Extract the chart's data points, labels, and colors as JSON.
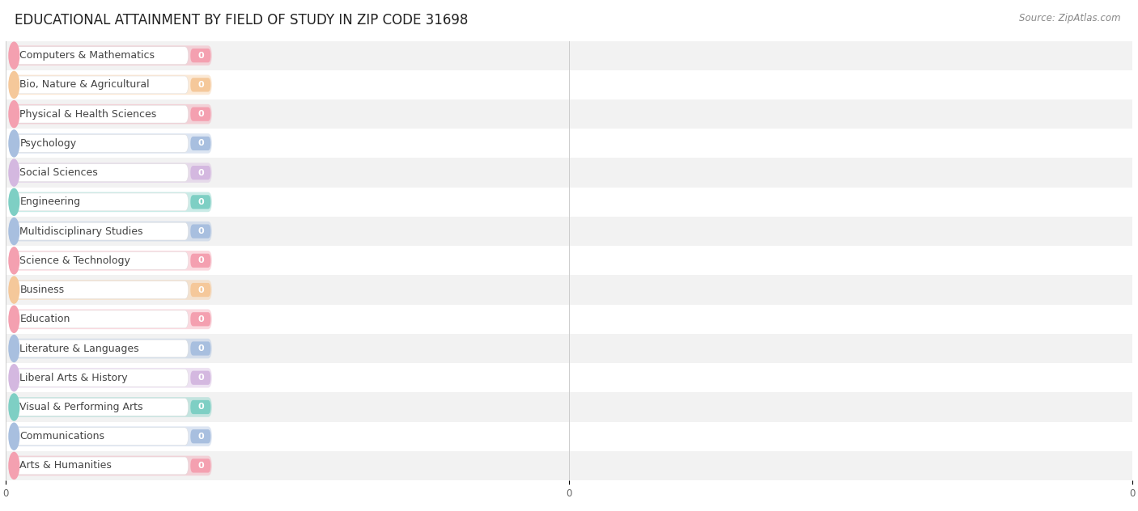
{
  "title": "EDUCATIONAL ATTAINMENT BY FIELD OF STUDY IN ZIP CODE 31698",
  "source": "Source: ZipAtlas.com",
  "categories": [
    "Computers & Mathematics",
    "Bio, Nature & Agricultural",
    "Physical & Health Sciences",
    "Psychology",
    "Social Sciences",
    "Engineering",
    "Multidisciplinary Studies",
    "Science & Technology",
    "Business",
    "Education",
    "Literature & Languages",
    "Liberal Arts & History",
    "Visual & Performing Arts",
    "Communications",
    "Arts & Humanities"
  ],
  "values": [
    0,
    0,
    0,
    0,
    0,
    0,
    0,
    0,
    0,
    0,
    0,
    0,
    0,
    0,
    0
  ],
  "bar_colors": [
    "#F4A0B0",
    "#F5C89A",
    "#F4A0B0",
    "#A8BFDF",
    "#D4B8E0",
    "#7ECFC4",
    "#A8BFDF",
    "#F4A0B0",
    "#F5C89A",
    "#F4A0B0",
    "#A8BFDF",
    "#D4B8E0",
    "#7ECFC4",
    "#A8BFDF",
    "#F4A0B0"
  ],
  "bg_row_colors": [
    "#F2F2F2",
    "#FFFFFF"
  ],
  "title_fontsize": 12,
  "source_fontsize": 8.5,
  "label_fontsize": 9,
  "value_fontsize": 8,
  "background_color": "#FFFFFF",
  "xlim_max": 100,
  "xtick_positions": [
    0,
    50,
    100
  ],
  "xtick_labels": [
    "0",
    "0",
    "0"
  ]
}
